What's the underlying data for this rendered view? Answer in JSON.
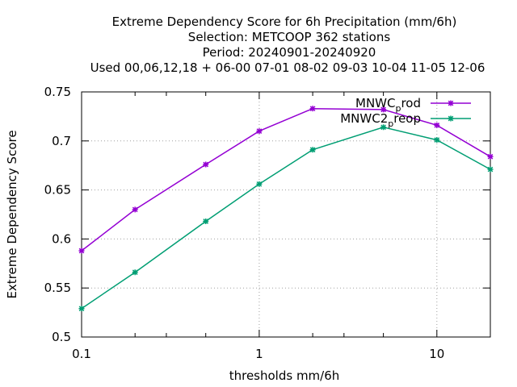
{
  "chart_data": {
    "type": "line",
    "title_lines": [
      "Extreme Dependency Score  for 6h Precipitation (mm/6h)",
      "Selection: METCOOP    362 stations",
      "Period: 20240901-20240920",
      "Used  00,06,12,18 + 06-00 07-01 08-02 09-03 10-04 11-05 12-06"
    ],
    "xlabel": "thresholds mm/6h",
    "ylabel": "Extreme Dependency Score",
    "xscale": "log",
    "xlim": [
      0.1,
      20
    ],
    "ylim": [
      0.5,
      0.75
    ],
    "xticks": [
      {
        "value": 0.1,
        "label": "0.1"
      },
      {
        "value": 1,
        "label": "1"
      },
      {
        "value": 10,
        "label": "10"
      }
    ],
    "x_minor_ticks": [
      0.2,
      0.3,
      0.5,
      2,
      3,
      5,
      20
    ],
    "yticks": [
      {
        "value": 0.5,
        "label": "0.5"
      },
      {
        "value": 0.55,
        "label": "0.55"
      },
      {
        "value": 0.6,
        "label": "0.6"
      },
      {
        "value": 0.65,
        "label": "0.65"
      },
      {
        "value": 0.7,
        "label": "0.7"
      },
      {
        "value": 0.75,
        "label": "0.75"
      }
    ],
    "grid": true,
    "legend_position": "top-right",
    "x": [
      0.1,
      0.2,
      0.5,
      1,
      2,
      5,
      10,
      20
    ],
    "series": [
      {
        "name": "MNWC_prod",
        "name_main": "MNWC",
        "name_sub": "p",
        "name_rest": "rod",
        "color": "#9400d3",
        "marker": "star",
        "values": [
          0.588,
          0.63,
          0.676,
          0.71,
          0.733,
          0.732,
          0.716,
          0.684
        ]
      },
      {
        "name": "MNWC2_preop",
        "name_main": "MNWC2",
        "name_sub": "p",
        "name_rest": "reop",
        "color": "#009e73",
        "marker": "star",
        "values": [
          0.529,
          0.566,
          0.618,
          0.656,
          0.691,
          0.714,
          0.701,
          0.671
        ]
      }
    ]
  }
}
